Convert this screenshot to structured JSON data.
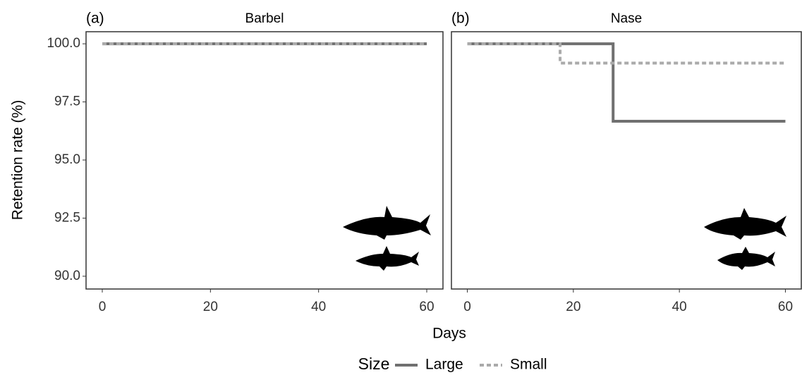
{
  "y_label": "Retention rate (%)",
  "x_label": "Days",
  "legend_title": "Size",
  "chart_data": [
    {
      "type": "line",
      "tag": "(a)",
      "title": "Barbel",
      "series": [
        {
          "name": "Large",
          "color": "#707070",
          "dash": false,
          "x": [
            0,
            60
          ],
          "values": [
            100,
            100
          ]
        },
        {
          "name": "Small",
          "color": "#aaaaaa",
          "dash": true,
          "x": [
            0,
            60
          ],
          "values": [
            100,
            100
          ]
        }
      ],
      "xlim": [
        -3,
        63
      ],
      "ylim": [
        89.45,
        100.52
      ],
      "xticks": [
        0,
        20,
        40,
        60
      ],
      "yticks": [
        {
          "value": 90,
          "label": "90.0"
        },
        {
          "value": 92.5,
          "label": "92.5"
        },
        {
          "value": 95,
          "label": "95.0"
        },
        {
          "value": 97.5,
          "label": "97.5"
        },
        {
          "value": 100,
          "label": "100.0"
        }
      ]
    },
    {
      "type": "line",
      "tag": "(b)",
      "title": "Nase",
      "series": [
        {
          "name": "Large",
          "color": "#707070",
          "dash": false,
          "x": [
            0,
            27.5,
            27.5,
            60
          ],
          "values": [
            100,
            100,
            96.67,
            96.67
          ]
        },
        {
          "name": "Small",
          "color": "#aaaaaa",
          "dash": true,
          "x": [
            0,
            17.5,
            17.5,
            60
          ],
          "values": [
            100,
            100,
            99.17,
            99.17
          ]
        }
      ],
      "xlim": [
        -3,
        63
      ],
      "ylim": [
        89.45,
        100.52
      ],
      "xticks": [
        0,
        20,
        40,
        60
      ],
      "yticks": [
        {
          "value": 90,
          "label": "90.0"
        },
        {
          "value": 92.5,
          "label": "92.5"
        },
        {
          "value": 95,
          "label": "95.0"
        },
        {
          "value": 97.5,
          "label": "97.5"
        },
        {
          "value": 100,
          "label": "100.0"
        }
      ]
    }
  ]
}
